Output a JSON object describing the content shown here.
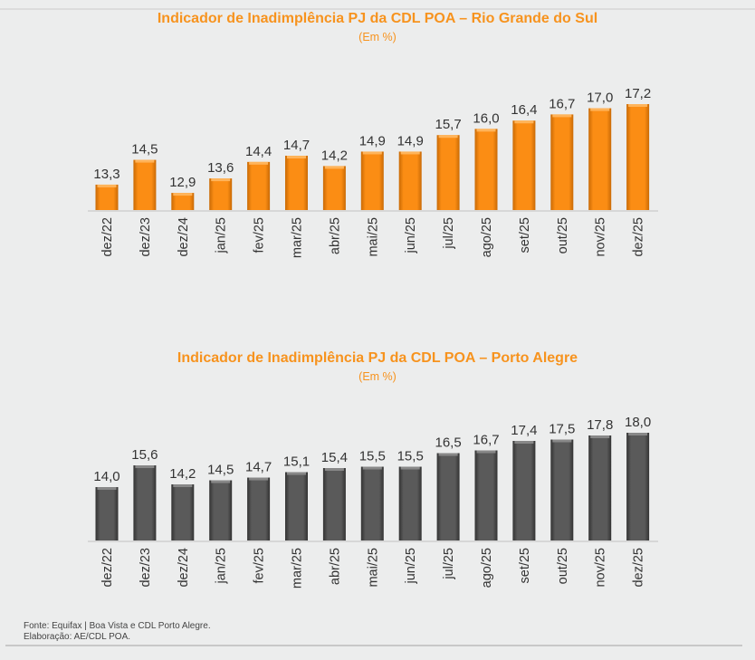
{
  "chart_data": [
    {
      "type": "bar",
      "title": "Indicador de Inadimplência PJ da CDL POA – Rio Grande do Sul",
      "subtitle": "(Em %)",
      "categories": [
        "dez/22",
        "dez/23",
        "dez/24",
        "jan/25",
        "fev/25",
        "mar/25",
        "abr/25",
        "mai/25",
        "jun/25",
        "jul/25",
        "ago/25",
        "set/25",
        "out/25",
        "nov/25",
        "dez/25"
      ],
      "values": [
        13.3,
        14.5,
        12.9,
        13.6,
        14.4,
        14.7,
        14.2,
        14.9,
        14.9,
        15.7,
        16.0,
        16.4,
        16.7,
        17.0,
        17.2
      ],
      "labels": [
        "13,3",
        "14,5",
        "12,9",
        "13,6",
        "14,4",
        "14,7",
        "14,2",
        "14,9",
        "14,9",
        "15,7",
        "16,0",
        "16,4",
        "16,7",
        "17,0",
        "17,2"
      ],
      "ylim": [
        12.07,
        17.2
      ],
      "color": "#f7890f",
      "grid": false
    },
    {
      "type": "bar",
      "title": "Indicador de Inadimplência PJ da CDL POA – Porto Alegre",
      "subtitle": "(Em %)",
      "categories": [
        "dez/22",
        "dez/23",
        "dez/24",
        "jan/25",
        "fev/25",
        "mar/25",
        "abr/25",
        "mai/25",
        "jun/25",
        "jul/25",
        "ago/25",
        "set/25",
        "out/25",
        "nov/25",
        "dez/25"
      ],
      "values": [
        14.0,
        15.6,
        14.2,
        14.5,
        14.7,
        15.1,
        15.4,
        15.5,
        15.5,
        16.5,
        16.7,
        17.4,
        17.5,
        17.8,
        18.0
      ],
      "labels": [
        "14,0",
        "15,6",
        "14,2",
        "14,5",
        "14,7",
        "15,1",
        "15,4",
        "15,5",
        "15,5",
        "16,5",
        "16,7",
        "17,4",
        "17,5",
        "17,8",
        "18,0"
      ],
      "ylim": [
        10.07,
        18.0
      ],
      "color": "#555555",
      "grid": false
    }
  ],
  "footer": {
    "source": "Fonte: Equifax | Boa Vista e CDL Porto Alegre.",
    "elaboration": "Elaboração: AE/CDL POA."
  }
}
